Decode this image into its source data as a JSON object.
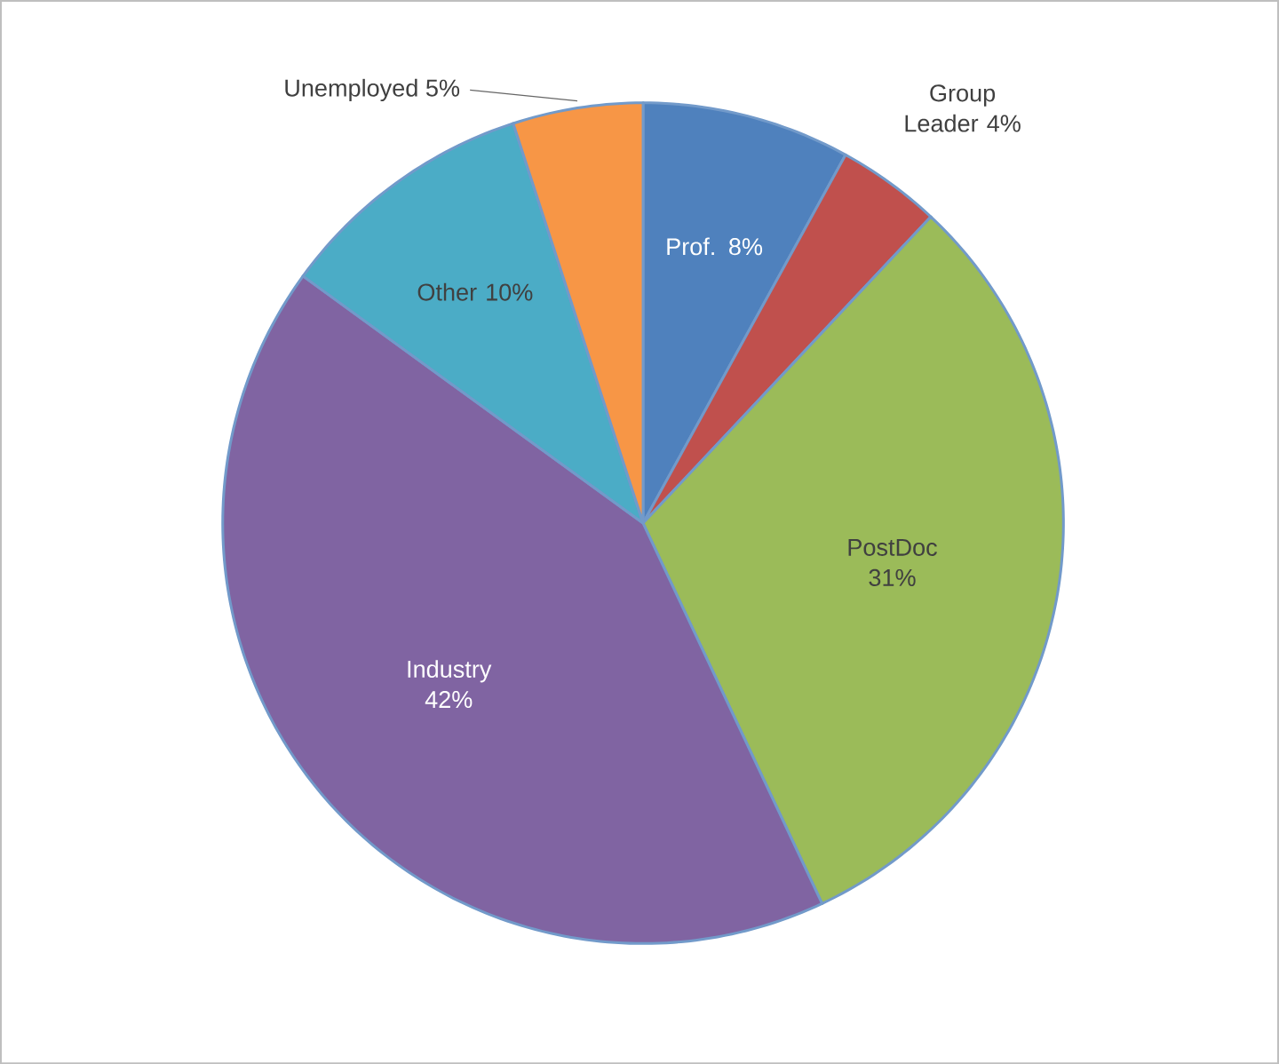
{
  "chart_data": {
    "type": "pie",
    "categories": [
      "Prof.",
      "Group Leader",
      "PostDoc",
      "Industry",
      "Other",
      "Unemployed"
    ],
    "values": [
      8,
      4,
      31,
      42,
      10,
      5
    ],
    "value_labels": [
      "8%",
      "4%",
      "31%",
      "42%",
      "10%",
      "5%"
    ],
    "colors": [
      "#4f81bd",
      "#c0504d",
      "#9bbb59",
      "#8064a2",
      "#4bacc6",
      "#f79646"
    ]
  }
}
